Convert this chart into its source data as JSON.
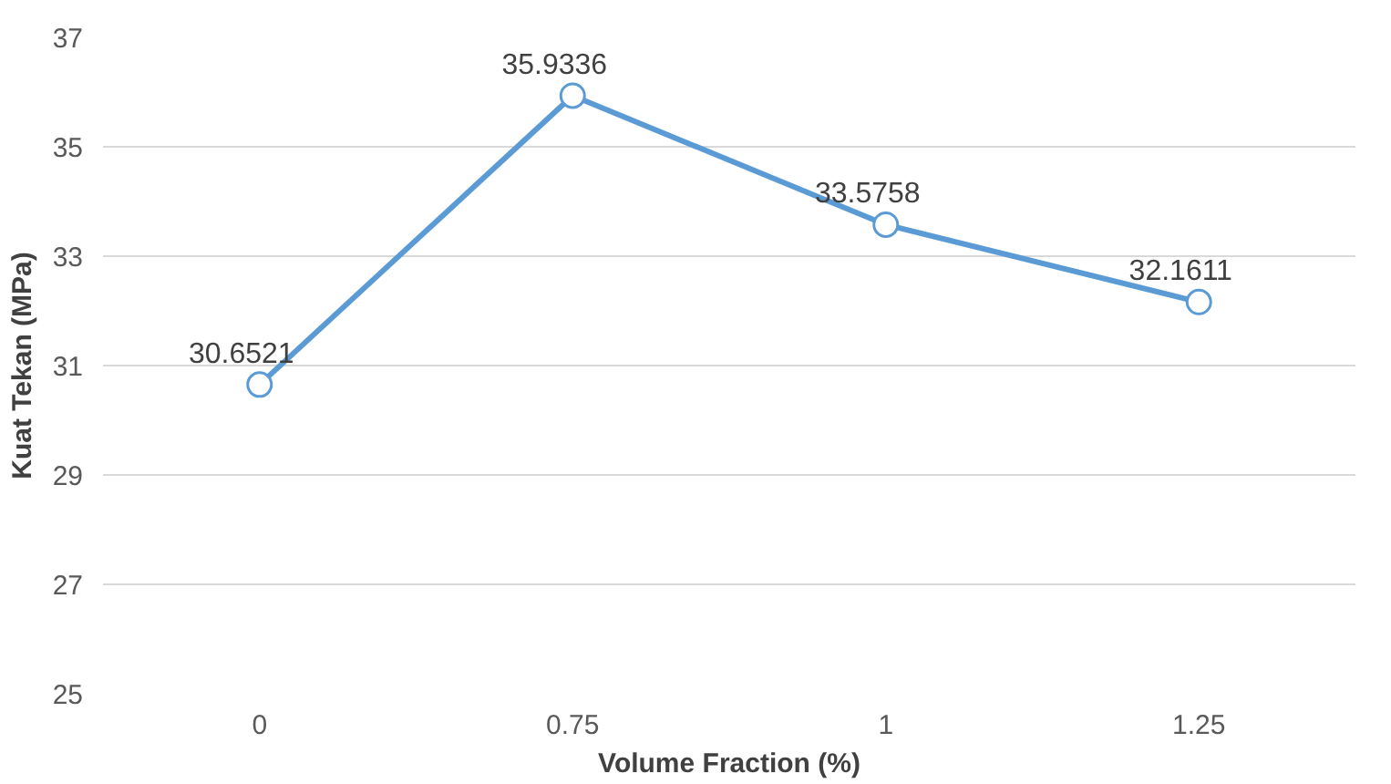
{
  "chart_data": {
    "type": "line",
    "xlabel": "Volume Fraction (%)",
    "ylabel": "Kuat Tekan (MPa)",
    "categories": [
      "0",
      "0.75",
      "1",
      "1.25"
    ],
    "series": [
      {
        "color": "#5b9bd5",
        "values": [
          30.6521,
          35.9336,
          33.5758,
          32.1611
        ]
      }
    ],
    "ylim": [
      25,
      37
    ],
    "yticks": [
      25,
      27,
      29,
      31,
      33,
      35,
      37
    ],
    "grid": "y",
    "marker": "circle",
    "line_style": "solid",
    "data_labels": true
  }
}
